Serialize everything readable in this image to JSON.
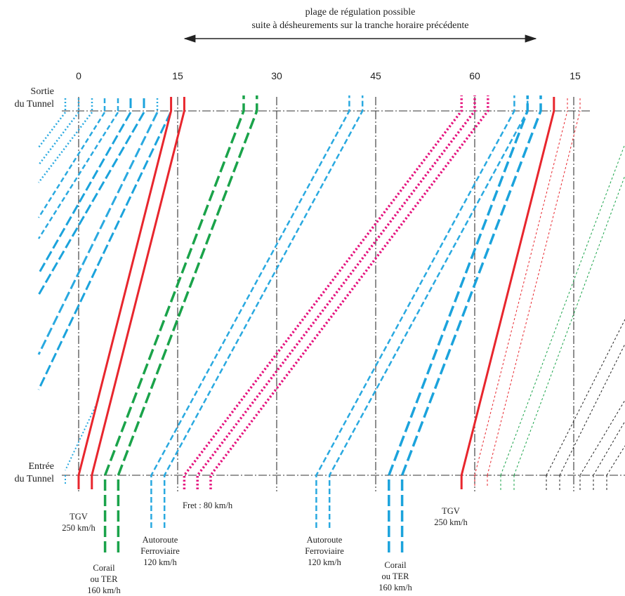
{
  "title": {
    "line1": "plage de régulation possible",
    "line2": "suite à désheurements sur la tranche horaire précédente"
  },
  "axis": {
    "top_label": {
      "line1": "Sortie",
      "line2": "du Tunnel"
    },
    "bottom_label": {
      "line1": "Entrée",
      "line2": "du Tunnel"
    },
    "ticks": [
      "0",
      "15",
      "30",
      "45",
      "60",
      "15"
    ]
  },
  "train_labels": {
    "tgv_1": {
      "line1": "TGV",
      "line2": "250 km/h"
    },
    "corail_1": {
      "line1": "Corail",
      "line2": "ou TER",
      "line3": "160 km/h"
    },
    "autoroute_1": {
      "line1": "Autoroute",
      "line2": "Ferroviaire",
      "line3": "120 km/h"
    },
    "fret": {
      "line1": "Fret : 80 km/h"
    },
    "autoroute_2": {
      "line1": "Autoroute",
      "line2": "Ferroviaire",
      "line3": "120 km/h"
    },
    "corail_2": {
      "line1": "Corail",
      "line2": "ou TER",
      "line3": "160 km/h"
    },
    "tgv_2": {
      "line1": "TGV",
      "line2": "250 km/h"
    }
  },
  "colors": {
    "tgv": "#e8262d",
    "corail_green": "#1aa34a",
    "autoroute_blue": "#29a9e0",
    "corail_blue": "#1ba3dc",
    "fret_magenta": "#e5127d",
    "next_hour_black": "#222222",
    "grid": "#333333"
  },
  "paths": [
    {
      "type": "tgv",
      "start_min": 0,
      "end_min": 14
    },
    {
      "type": "tgv",
      "start_min": 2,
      "end_min": 16
    },
    {
      "type": "corail_g",
      "start_min": 4,
      "end_min": 25
    },
    {
      "type": "corail_g",
      "start_min": 6,
      "end_min": 27
    },
    {
      "type": "autoroute",
      "start_min": 11,
      "end_min": 41
    },
    {
      "type": "autoroute",
      "start_min": 13,
      "end_min": 43
    },
    {
      "type": "fret",
      "start_min": 16,
      "end_min": 58
    },
    {
      "type": "fret",
      "start_min": 18,
      "end_min": 60
    },
    {
      "type": "fret",
      "start_min": 20,
      "end_min": 62
    },
    {
      "type": "autoroute",
      "start_min": 36,
      "end_min": 66
    },
    {
      "type": "autoroute",
      "start_min": 38,
      "end_min": 68
    },
    {
      "type": "corail_b",
      "start_min": 47,
      "end_min": 68
    },
    {
      "type": "corail_b",
      "start_min": 49,
      "end_min": 70
    },
    {
      "type": "tgv",
      "start_min": 58,
      "end_min": 72
    }
  ]
}
